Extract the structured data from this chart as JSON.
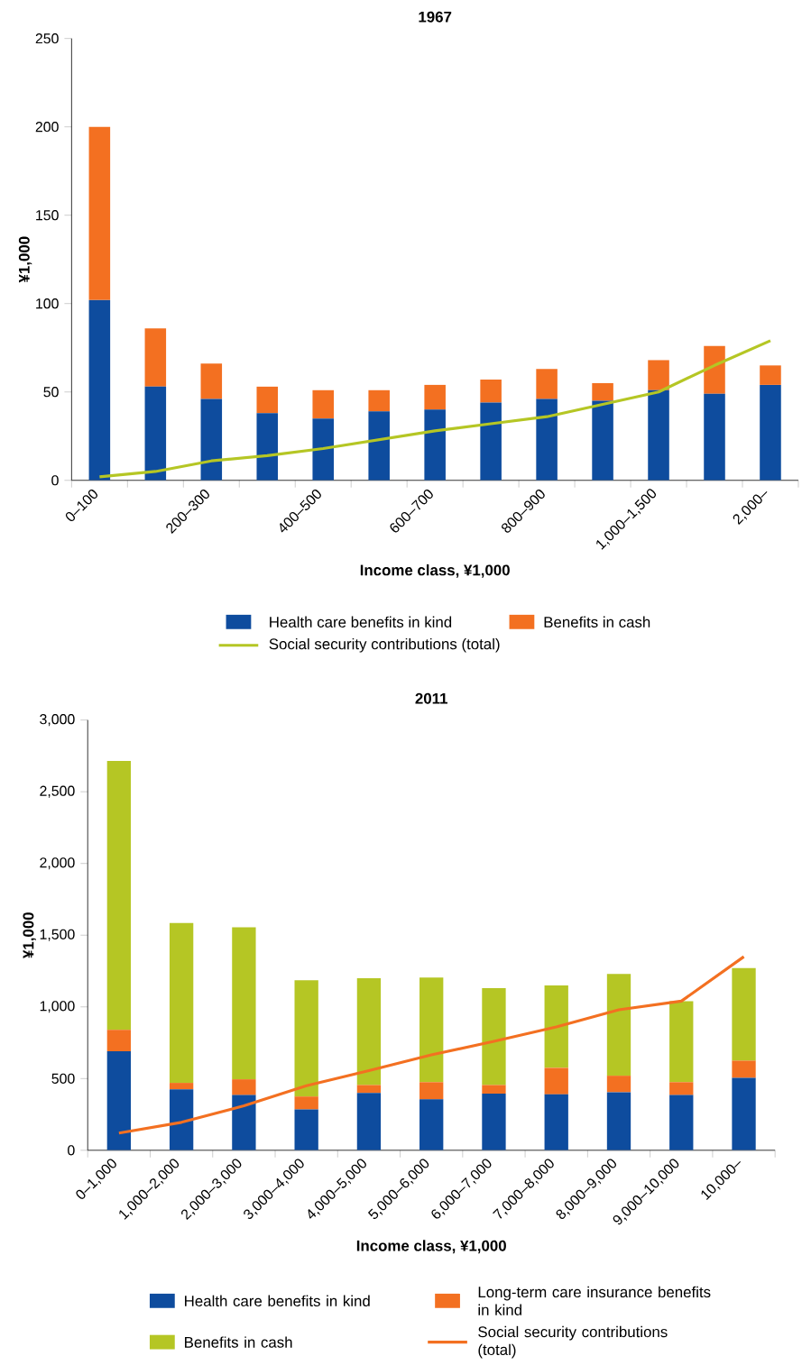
{
  "chart_data": [
    {
      "type": "bar",
      "title": "1967",
      "xlabel": "Income class, ¥1,000",
      "ylabel": "¥1,000",
      "stacked": true,
      "legend": "bottom",
      "categories": [
        "0–100",
        null,
        "200–300",
        null,
        "400–500",
        null,
        "600–700",
        null,
        "800–900",
        null,
        "1,000–1,500",
        null,
        "2,000–"
      ],
      "ylim": [
        0,
        250
      ],
      "yticks": [
        0,
        50,
        100,
        150,
        200,
        250
      ],
      "series": [
        {
          "name": "Health care benefits in kind",
          "color": "#0e4c9e",
          "values": [
            102,
            53,
            46,
            38,
            35,
            39,
            40,
            44,
            46,
            45,
            51,
            49,
            54
          ]
        },
        {
          "name": "Benefits in cash",
          "color": "#f37021",
          "values": [
            98,
            33,
            20,
            15,
            16,
            12,
            14,
            13,
            17,
            10,
            17,
            27,
            11
          ]
        },
        {
          "name": "Social security contributions (total)",
          "type": "line",
          "color": "#b5c624",
          "values": [
            2,
            5,
            11,
            14,
            18,
            23,
            28,
            32,
            36,
            43,
            50,
            65,
            79
          ]
        }
      ]
    },
    {
      "type": "bar",
      "title": "2011",
      "xlabel": "Income class, ¥1,000",
      "ylabel": "¥1,000",
      "stacked": true,
      "legend": "bottom",
      "categories": [
        "0–1,000",
        "1,000–2,000",
        "2,000–3,000",
        "3,000–4,000",
        "4,000–5,000",
        "5,000–6,000",
        "6,000–7,000",
        "7,000–8,000",
        "8,000–9,000",
        "9,000–10,000",
        "10,000–"
      ],
      "ylim": [
        0,
        3000
      ],
      "yticks": [
        0,
        500,
        {
          "value": 1000,
          "label": "1,000"
        },
        {
          "value": 1500,
          "label": "1,500"
        },
        {
          "value": 2000,
          "label": "2,000"
        },
        {
          "value": 2500,
          "label": "2,500"
        },
        {
          "value": 3000,
          "label": "3,000"
        }
      ],
      "series": [
        {
          "name": "Health care benefits in kind",
          "color": "#0e4c9e",
          "values": [
            690,
            425,
            385,
            285,
            400,
            355,
            395,
            390,
            405,
            385,
            505
          ]
        },
        {
          "name": "Long-term care insurance benefits in kind",
          "color": "#f37021",
          "values": [
            150,
            45,
            110,
            90,
            55,
            120,
            60,
            185,
            115,
            90,
            120
          ]
        },
        {
          "name": "Benefits in cash",
          "color": "#b5c624",
          "values": [
            1875,
            1115,
            1060,
            810,
            745,
            730,
            675,
            575,
            710,
            565,
            645
          ]
        },
        {
          "name": "Social security contributions (total)",
          "type": "line",
          "color": "#f37021",
          "values": [
            120,
            195,
            310,
            450,
            555,
            665,
            760,
            860,
            980,
            1040,
            1350
          ]
        }
      ]
    }
  ]
}
